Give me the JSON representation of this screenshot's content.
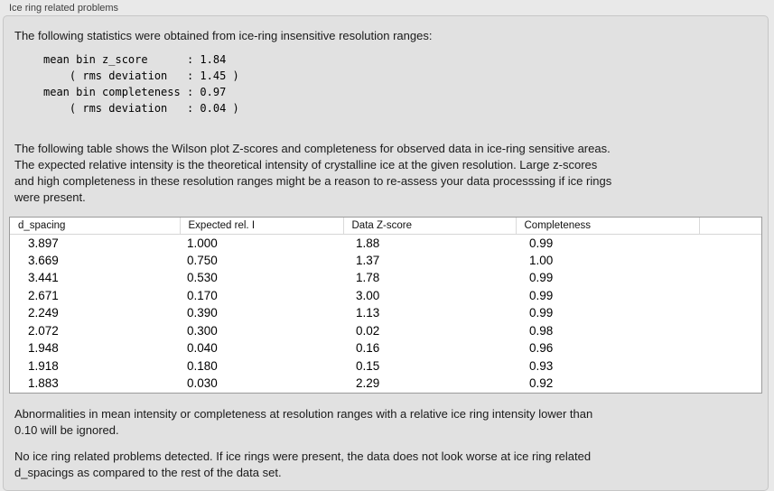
{
  "panel": {
    "title": "Ice ring related problems"
  },
  "intro": "The following statistics were obtained from ice-ring insensitive resolution ranges:",
  "stats_block": "mean bin z_score      : 1.84\n    ( rms deviation   : 1.45 )\nmean bin completeness : 0.97\n    ( rms deviation   : 0.04 )",
  "table_description": "The following table shows the Wilson plot Z-scores and completeness for observed data in ice-ring sensitive areas.\nThe expected relative intensity is the theoretical intensity of crystalline ice at the given resolution. Large z-scores\nand high completeness in these resolution ranges might be a reason to re-assess your data processsing if ice rings\nwere present.",
  "table": {
    "columns": [
      "d_spacing",
      "Expected rel. I",
      "Data Z-score",
      "Completeness",
      ""
    ],
    "rows": [
      [
        "3.897",
        "1.000",
        "1.88",
        "0.99",
        ""
      ],
      [
        "3.669",
        "0.750",
        "1.37",
        "1.00",
        ""
      ],
      [
        "3.441",
        "0.530",
        "1.78",
        "0.99",
        ""
      ],
      [
        "2.671",
        "0.170",
        "3.00",
        "0.99",
        ""
      ],
      [
        "2.249",
        "0.390",
        "1.13",
        "0.99",
        ""
      ],
      [
        "2.072",
        "0.300",
        "0.02",
        "0.98",
        ""
      ],
      [
        "1.948",
        "0.040",
        "0.16",
        "0.96",
        ""
      ],
      [
        "1.918",
        "0.180",
        "0.15",
        "0.93",
        ""
      ],
      [
        "1.883",
        "0.030",
        "2.29",
        "0.92",
        ""
      ]
    ]
  },
  "note_ignore": "Abnormalities in mean intensity or completeness at resolution ranges with a relative ice ring intensity lower than\n0.10 will be ignored.",
  "conclusion": "No ice ring related problems detected. If ice rings were present, the data does not look worse at ice ring related\nd_spacings as compared to the rest of the data set."
}
